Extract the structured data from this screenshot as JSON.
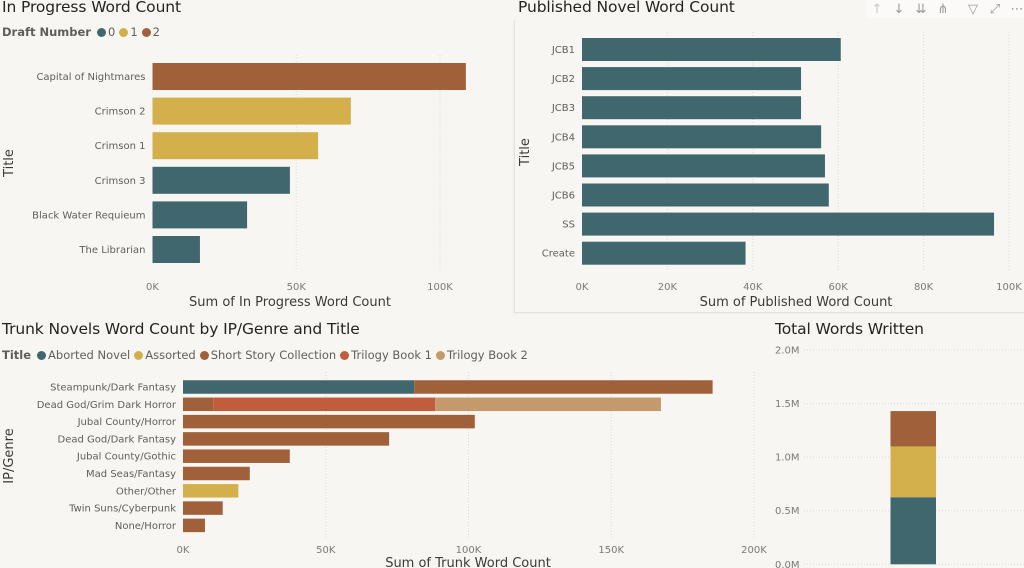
{
  "colors": {
    "teal": "#41676e",
    "yellow": "#d4b04c",
    "brown": "#a0603a",
    "red": "#c15c3d",
    "tan": "#c49a6c"
  },
  "toolbar": {
    "buttons": [
      {
        "name": "drill-up-icon",
        "glyph": "↑"
      },
      {
        "name": "drill-down-icon",
        "glyph": "↓"
      },
      {
        "name": "go-to-next-level-icon",
        "glyph": "⇊"
      },
      {
        "name": "expand-hierarchy-icon",
        "glyph": "⋔"
      },
      {
        "name": "filter-icon",
        "glyph": "▽"
      },
      {
        "name": "focus-mode-icon",
        "glyph": "⤢"
      },
      {
        "name": "more-options-icon",
        "glyph": "⋯"
      }
    ]
  },
  "chart_data": [
    {
      "id": "in_progress",
      "type": "bar",
      "orientation": "horizontal",
      "title": "In Progress Word Count",
      "legend": {
        "title": "Draft Number",
        "placement": "top-left",
        "items": [
          {
            "label": "0",
            "color": "#41676e"
          },
          {
            "label": "1",
            "color": "#d4b04c"
          },
          {
            "label": "2",
            "color": "#a0603a"
          }
        ]
      },
      "categories": [
        "Capital of Nightmares",
        "Crimson 2",
        "Crimson 1",
        "Crimson 3",
        "Black Water Requieum",
        "The Librarian"
      ],
      "values": [
        109000,
        69000,
        57600,
        47800,
        32900,
        16500
      ],
      "series_by_category": [
        "2",
        "1",
        "1",
        "0",
        "0",
        "0"
      ],
      "xlabel": "Sum of In Progress Word Count",
      "ylabel": "Title",
      "xlim": [
        0,
        120000
      ],
      "xticks": [
        0,
        50000,
        100000
      ],
      "xtick_labels": [
        "0K",
        "50K",
        "100K"
      ],
      "grid": true
    },
    {
      "id": "published",
      "type": "bar",
      "orientation": "horizontal",
      "title": "Published Novel Word Count",
      "categories": [
        "JCB1",
        "JCB2",
        "JCB3",
        "JCB4",
        "JCB5",
        "JCB6",
        "SS",
        "Create"
      ],
      "values": [
        60600,
        51300,
        51300,
        56000,
        56900,
        57800,
        96500,
        38300
      ],
      "color": "#41676e",
      "xlabel": "Sum of Published Word Count",
      "ylabel": "Title",
      "xlim": [
        0,
        100000
      ],
      "xticks": [
        0,
        20000,
        40000,
        60000,
        80000,
        100000
      ],
      "xtick_labels": [
        "0K",
        "20K",
        "40K",
        "60K",
        "80K",
        "100K"
      ],
      "grid": true
    },
    {
      "id": "trunk",
      "type": "bar",
      "orientation": "horizontal",
      "stacked": true,
      "title": "Trunk Novels Word Count by IP/Genre and Title",
      "legend": {
        "title": "Title",
        "placement": "top-left"
      },
      "categories": [
        "Steampunk/Dark Fantasy",
        "Dead God/Grim Dark Horror",
        "Jubal County/Horror",
        "Dead God/Dark Fantasy",
        "Jubal County/Gothic",
        "Mad Seas/Fantasy",
        "Other/Other",
        "Twin Suns/Cyberpunk",
        "None/Horror"
      ],
      "series": [
        {
          "name": "Aborted Novel",
          "color": "#41676e",
          "values": [
            81000,
            0,
            0,
            0,
            0,
            0,
            0,
            0,
            0
          ]
        },
        {
          "name": "Assorted",
          "color": "#d4b04c",
          "values": [
            0,
            0,
            0,
            0,
            0,
            0,
            19400,
            0,
            0
          ]
        },
        {
          "name": "Short Story Collection",
          "color": "#a0603a",
          "values": [
            104500,
            10600,
            102200,
            72200,
            37400,
            23400,
            0,
            13900,
            7700
          ]
        },
        {
          "name": "Trilogy Book 1",
          "color": "#c15c3d",
          "values": [
            0,
            77700,
            0,
            0,
            0,
            0,
            0,
            0,
            0
          ]
        },
        {
          "name": "Trilogy Book 2",
          "color": "#c49a6c",
          "values": [
            0,
            79100,
            0,
            0,
            0,
            0,
            0,
            0,
            0
          ]
        }
      ],
      "stack_order": [
        "Aborted Novel",
        "Short Story Collection",
        "Trilogy Book 1",
        "Trilogy Book 2",
        "Assorted"
      ],
      "xlabel": "Sum of Trunk Word Count",
      "ylabel": "IP/Genre",
      "xlim": [
        0,
        200000
      ],
      "xticks": [
        0,
        50000,
        100000,
        150000,
        200000
      ],
      "xtick_labels": [
        "0K",
        "50K",
        "100K",
        "150K",
        "200K"
      ],
      "grid": true
    },
    {
      "id": "total",
      "type": "bar",
      "orientation": "vertical",
      "stacked": true,
      "title": "Total Words Written",
      "series": [
        {
          "name": "segment-1",
          "color": "#41676e",
          "value": 626000
        },
        {
          "name": "segment-2",
          "color": "#d4b04c",
          "value": 474000
        },
        {
          "name": "segment-3",
          "color": "#a0603a",
          "value": 330000
        }
      ],
      "ylim": [
        0,
        2000000
      ],
      "yticks": [
        0,
        500000,
        1000000,
        1500000,
        2000000
      ],
      "ytick_labels": [
        "0.0M",
        "0.5M",
        "1.0M",
        "1.5M",
        "2.0M"
      ],
      "grid": true
    }
  ]
}
